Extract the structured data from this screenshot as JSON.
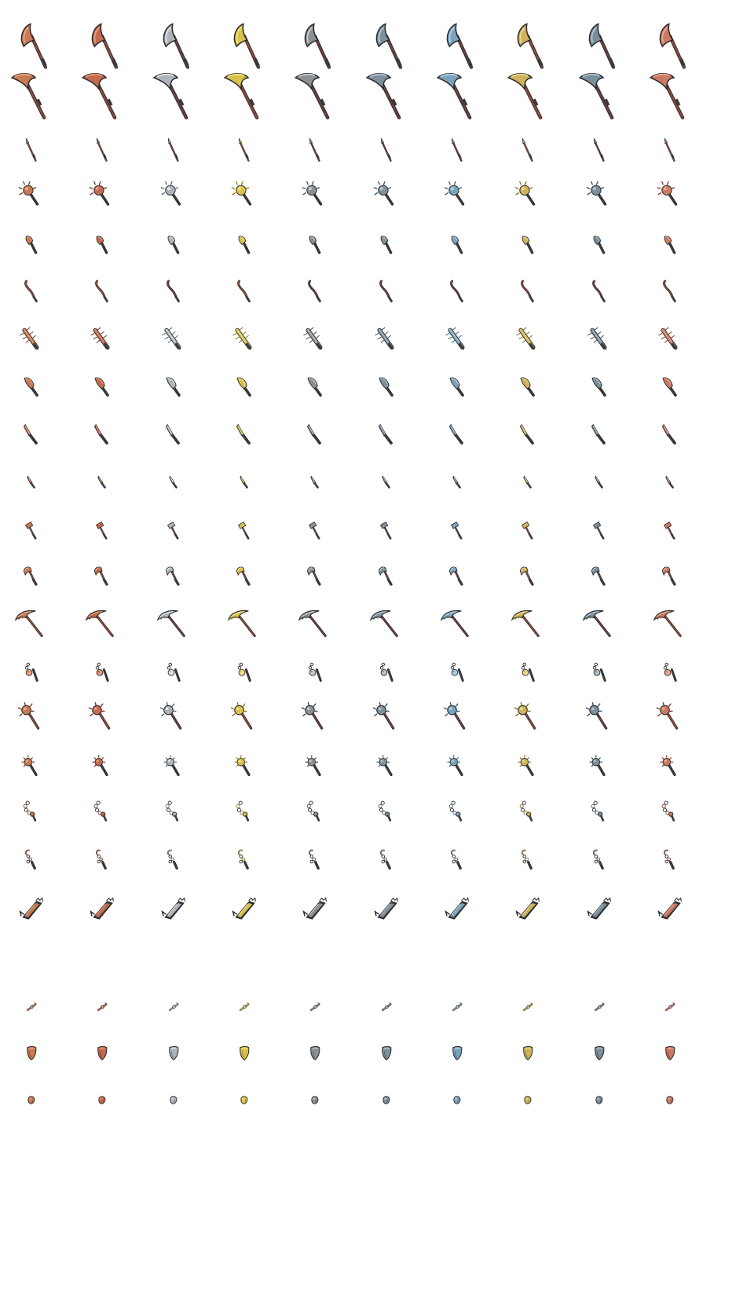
{
  "sheet": {
    "background": "#ffffff",
    "columns": 10
  },
  "palettes": [
    {
      "name": "copper",
      "main": "#c87a52",
      "light": "#e6a682",
      "dark": "#7a3f26",
      "shaft": "#8a4a3a"
    },
    {
      "name": "bronze",
      "main": "#c46a4e",
      "light": "#e59a7c",
      "dark": "#74382a",
      "shaft": "#8a4a3a"
    },
    {
      "name": "iron",
      "main": "#aab4ba",
      "light": "#dfe5e8",
      "dark": "#5e6870",
      "shaft": "#6e3e3e"
    },
    {
      "name": "gold",
      "main": "#d8c24a",
      "light": "#f2e28a",
      "dark": "#8a7a22",
      "shaft": "#8a4a3a"
    },
    {
      "name": "steel",
      "main": "#8c9094",
      "light": "#c8ccd0",
      "dark": "#4a4e52",
      "shaft": "#6e3e3e"
    },
    {
      "name": "slate",
      "main": "#7e909c",
      "light": "#b6c6d0",
      "dark": "#42525c",
      "shaft": "#6e3e3e"
    },
    {
      "name": "mithril",
      "main": "#7aa2bc",
      "light": "#b2d2e4",
      "dark": "#3e6278",
      "shaft": "#6e3e3e"
    },
    {
      "name": "brass",
      "main": "#cfb25a",
      "light": "#ecd892",
      "dark": "#86702a",
      "shaft": "#8a4a3a"
    },
    {
      "name": "cobalt",
      "main": "#7a8e9c",
      "light": "#b0c2ce",
      "dark": "#3e505c",
      "shaft": "#6e3e3e"
    },
    {
      "name": "rose",
      "main": "#cc7a62",
      "light": "#eaa892",
      "dark": "#7c3e2e",
      "shaft": "#8a4a3a"
    }
  ],
  "rows": [
    {
      "kind": "halberd-axe",
      "y": 58,
      "size": 60
    },
    {
      "kind": "halberd",
      "y": 120,
      "size": 62
    },
    {
      "kind": "spear-short",
      "y": 191,
      "size": 34
    },
    {
      "kind": "spiked-club",
      "y": 247,
      "size": 34
    },
    {
      "kind": "hand-axe",
      "y": 311,
      "size": 28
    },
    {
      "kind": "whip",
      "y": 370,
      "size": 32
    },
    {
      "kind": "nail-bat",
      "y": 430,
      "size": 34
    },
    {
      "kind": "cleaver",
      "y": 491,
      "size": 32
    },
    {
      "kind": "machete",
      "y": 552,
      "size": 30
    },
    {
      "kind": "dagger",
      "y": 613,
      "size": 22
    },
    {
      "kind": "hammer-small",
      "y": 675,
      "size": 26
    },
    {
      "kind": "hatchet",
      "y": 732,
      "size": 30
    },
    {
      "kind": "war-pick",
      "y": 791,
      "size": 44
    },
    {
      "kind": "flail",
      "y": 855,
      "size": 30
    },
    {
      "kind": "mace-long",
      "y": 912,
      "size": 36
    },
    {
      "kind": "morningstar",
      "y": 975,
      "size": 30
    },
    {
      "kind": "chain",
      "y": 1033,
      "size": 30
    },
    {
      "kind": "chain-hook",
      "y": 1094,
      "size": 30
    },
    {
      "kind": "chainsaw",
      "y": 1157,
      "size": 36
    },
    {
      "kind": "bone-charm",
      "y": 1283,
      "size": 24
    },
    {
      "kind": "shield-piece",
      "y": 1341,
      "size": 26
    },
    {
      "kind": "ore-chunk",
      "y": 1401,
      "size": 18
    }
  ]
}
